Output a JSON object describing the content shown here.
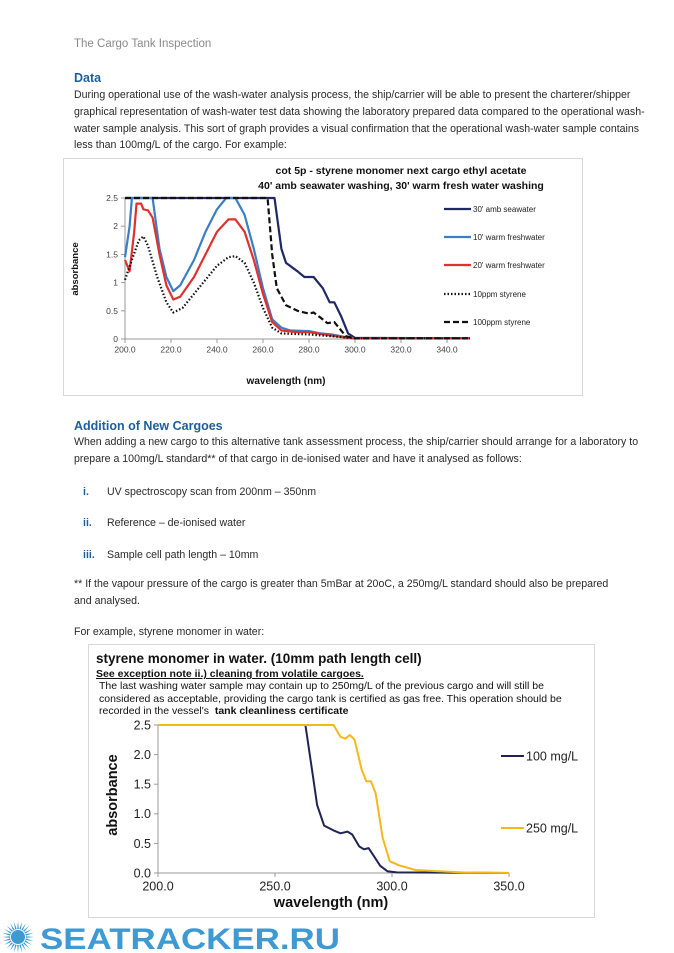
{
  "running_header": "The Cargo Tank Inspection",
  "data_section": {
    "heading": "Data",
    "paragraph": "During operational use of the wash-water analysis process, the ship/carrier will be able to present the charterer/shipper graphical representation of wash-water test data showing the laboratory prepared data compared to the operational wash-water sample analysis. This sort of graph provides a visual confirmation that the operational wash-water sample contains less than 100mg/L of the cargo. For example:"
  },
  "new_cargoes_section": {
    "heading": "Addition of New Cargoes",
    "paragraph": "When adding a new cargo to this alternative tank assessment process, the ship/carrier should arrange for a laboratory to prepare a 100mg/L standard** of that cargo in de-ionised water and have it analysed as follows:",
    "steps": [
      {
        "num": "i.",
        "text": "UV spectroscopy scan from 200nm – 350nm"
      },
      {
        "num": "ii.",
        "text": "Reference – de-ionised water"
      },
      {
        "num": "iii.",
        "text": "Sample cell path length – 10mm"
      }
    ],
    "footnote": "** If the vapour pressure of the cargo is greater than 5mBar at 20oC, a 250mg/L standard should also be prepared and analysed.",
    "example_intro": "For example, styrene monomer in water:"
  },
  "chart_data": [
    {
      "type": "line",
      "title": [
        "cot 5p - styrene monomer next cargo ethyl acetate",
        "40' amb seawater washing, 30' warm fresh water washing"
      ],
      "xlabel": "wavelength (nm)",
      "ylabel": "absorbance",
      "xlim": [
        200,
        350
      ],
      "ylim": [
        0,
        2.5
      ],
      "xticks": [
        "200.0",
        "220.0",
        "240.0",
        "260.0",
        "280.0",
        "300.0",
        "320.0",
        "340.0"
      ],
      "yticks": [
        "0",
        "0.5",
        "1",
        "1.5",
        "2",
        "2.5"
      ],
      "grid": false,
      "legend": "right",
      "series": [
        {
          "name": "30' amb seawater",
          "color": "#1f2766",
          "style": "solid",
          "x": [
            200,
            265,
            268,
            270,
            275,
            278,
            282,
            286,
            289,
            291,
            294,
            297,
            300,
            350
          ],
          "y": [
            2.5,
            2.5,
            1.6,
            1.35,
            1.2,
            1.1,
            1.1,
            0.9,
            0.65,
            0.65,
            0.4,
            0.1,
            0.02,
            0.01
          ]
        },
        {
          "name": "10' warm freshwater",
          "color": "#3a7fc6",
          "style": "solid",
          "x": [
            200,
            202,
            203,
            212,
            215,
            218,
            221,
            224,
            230,
            235,
            240,
            244,
            248,
            252,
            256,
            260,
            264,
            268,
            272,
            280,
            285,
            290,
            295,
            300,
            350
          ],
          "y": [
            1.45,
            2.0,
            2.5,
            2.5,
            1.6,
            1.1,
            0.85,
            0.95,
            1.4,
            1.9,
            2.3,
            2.5,
            2.5,
            2.2,
            1.6,
            0.9,
            0.35,
            0.2,
            0.15,
            0.14,
            0.1,
            0.08,
            0.04,
            0.01,
            0.01
          ]
        },
        {
          "name": "20' warm freshwater",
          "color": "#e0312e",
          "style": "solid",
          "x": [
            200,
            202,
            204,
            205,
            207,
            208,
            210,
            212,
            215,
            218,
            221,
            224,
            230,
            235,
            240,
            245,
            248,
            252,
            256,
            260,
            264,
            268,
            275,
            280,
            290,
            295,
            300,
            350
          ],
          "y": [
            1.4,
            1.2,
            1.9,
            2.4,
            2.4,
            2.3,
            2.28,
            2.15,
            1.5,
            0.95,
            0.7,
            0.75,
            1.1,
            1.5,
            1.9,
            2.12,
            2.12,
            1.9,
            1.4,
            0.8,
            0.3,
            0.15,
            0.12,
            0.12,
            0.06,
            0.03,
            0.01,
            0.01
          ]
        },
        {
          "name": "10ppm styrene",
          "color": "#111111",
          "style": "dotted",
          "x": [
            200,
            203,
            206,
            208,
            210,
            214,
            218,
            221,
            225,
            230,
            235,
            240,
            245,
            248,
            252,
            256,
            260,
            264,
            268,
            280,
            290,
            300,
            350
          ],
          "y": [
            1.05,
            1.4,
            1.75,
            1.82,
            1.65,
            1.1,
            0.65,
            0.47,
            0.55,
            0.8,
            1.05,
            1.3,
            1.45,
            1.47,
            1.35,
            1.0,
            0.55,
            0.2,
            0.1,
            0.08,
            0.05,
            0.01,
            0.01
          ]
        },
        {
          "name": "100ppm styrene",
          "color": "#111111",
          "style": "dashed",
          "x": [
            200,
            262,
            264,
            266,
            270,
            275,
            280,
            282,
            285,
            288,
            291,
            293,
            296,
            300,
            350
          ],
          "y": [
            2.5,
            2.5,
            1.5,
            0.9,
            0.6,
            0.5,
            0.45,
            0.47,
            0.38,
            0.28,
            0.3,
            0.2,
            0.05,
            0.01,
            0.01
          ]
        }
      ]
    },
    {
      "type": "line",
      "title": "styrene monomer in water. (10mm path length cell)",
      "subtitle": "See exception note ii.) cleaning from volatile cargoes.",
      "note": "The last washing water sample may contain up to 250mg/L of the previous cargo and will still be considered as acceptable, providing the cargo tank is certified as gas free. This operation should be recorded in the vessel's",
      "note_bold": "tank cleanliness certificate",
      "xlabel": "wavelength (nm)",
      "ylabel": "absorbance",
      "xlim": [
        200,
        350
      ],
      "ylim": [
        0,
        2.5
      ],
      "xticks": [
        "200.0",
        "250.0",
        "300.0",
        "350.0"
      ],
      "yticks": [
        "0.0",
        "0.5",
        "1.0",
        "1.5",
        "2.0",
        "2.5"
      ],
      "grid": false,
      "legend": "right",
      "series": [
        {
          "name": "100 mg/L",
          "color": "#1f2455",
          "style": "solid",
          "x": [
            200,
            263,
            266,
            268,
            271,
            275,
            278,
            281,
            283,
            286,
            288,
            290,
            292,
            295,
            298,
            302,
            350
          ],
          "y": [
            2.5,
            2.5,
            1.7,
            1.15,
            0.8,
            0.72,
            0.67,
            0.7,
            0.65,
            0.45,
            0.4,
            0.42,
            0.3,
            0.12,
            0.03,
            0.01,
            0.0
          ]
        },
        {
          "name": "250 mg/L",
          "color": "#f5b81c",
          "style": "solid",
          "x": [
            200,
            275,
            278,
            280,
            282,
            284,
            287,
            289,
            291,
            293,
            296,
            299,
            303,
            310,
            320,
            330,
            350
          ],
          "y": [
            2.5,
            2.5,
            2.3,
            2.27,
            2.33,
            2.25,
            1.75,
            1.55,
            1.55,
            1.35,
            0.6,
            0.2,
            0.13,
            0.05,
            0.03,
            0.01,
            0.0
          ]
        }
      ]
    }
  ],
  "watermark": {
    "text": "SEATRACKER.RU",
    "color": "#3d9ad2"
  }
}
